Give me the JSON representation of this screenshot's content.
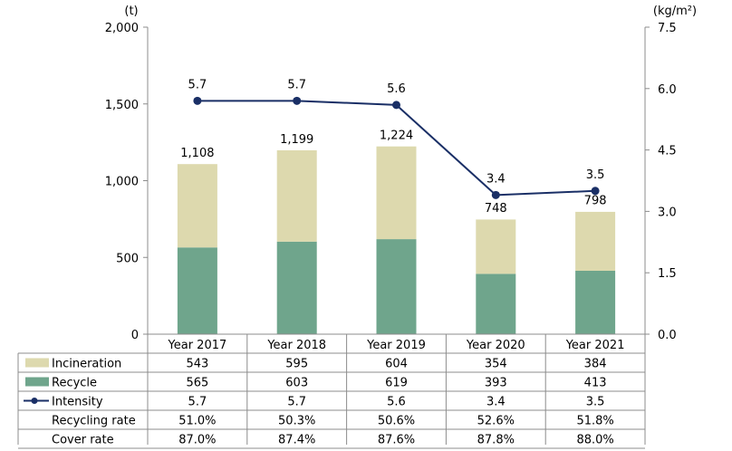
{
  "chart_data": {
    "type": "bar",
    "stacked": true,
    "categories": [
      "Year 2017",
      "Year 2018",
      "Year 2019",
      "Year 2020",
      "Year 2021"
    ],
    "series": [
      {
        "name": "Recycle",
        "type": "bar",
        "axis": "left",
        "color": "#6fa58c",
        "values": [
          565,
          603,
          619,
          393,
          413
        ]
      },
      {
        "name": "Incineration",
        "type": "bar",
        "axis": "left",
        "color": "#ddd9ae",
        "values": [
          543,
          595,
          604,
          354,
          384
        ]
      },
      {
        "name": "Intensity",
        "type": "line",
        "axis": "right",
        "color": "#1a2f66",
        "values": [
          5.7,
          5.7,
          5.6,
          3.4,
          3.5
        ]
      }
    ],
    "totals": [
      1108,
      1199,
      1224,
      748,
      798
    ],
    "total_labels": [
      "1,108",
      "1,199",
      "1,224",
      "748",
      "798"
    ],
    "intensity_labels": [
      "5.7",
      "5.7",
      "5.6",
      "3.4",
      "3.5"
    ],
    "left_axis": {
      "unit": "(t)",
      "ylim": [
        0,
        2000
      ],
      "ticks": [
        0,
        500,
        1000,
        1500,
        2000
      ],
      "tick_labels": [
        "0",
        "500",
        "1,000",
        "1,500",
        "2,000"
      ]
    },
    "right_axis": {
      "unit": "(kg/m²)",
      "ylim": [
        0,
        7.5
      ],
      "ticks": [
        0,
        1.5,
        3,
        4.5,
        6,
        7.5
      ],
      "tick_labels": [
        "0.0",
        "1.5",
        "3.0",
        "4.5",
        "6.0",
        "7.5"
      ]
    },
    "grid": false,
    "legend": "table-left",
    "table": {
      "rows": [
        {
          "label": "Incineration",
          "legend": "bar",
          "color": "#ddd9ae",
          "cells": [
            "543",
            "595",
            "604",
            "354",
            "384"
          ]
        },
        {
          "label": "Recycle",
          "legend": "bar",
          "color": "#6fa58c",
          "cells": [
            "565",
            "603",
            "619",
            "393",
            "413"
          ]
        },
        {
          "label": "Intensity",
          "legend": "line",
          "color": "#1a2f66",
          "cells": [
            "5.7",
            "5.7",
            "5.6",
            "3.4",
            "3.5"
          ]
        },
        {
          "label": "Recycling rate",
          "legend": "none",
          "cells": [
            "51.0%",
            "50.3%",
            "50.6%",
            "52.6%",
            "51.8%"
          ]
        },
        {
          "label": "Cover rate",
          "legend": "none",
          "cells": [
            "87.0%",
            "87.4%",
            "87.6%",
            "87.8%",
            "88.0%"
          ]
        }
      ]
    }
  }
}
